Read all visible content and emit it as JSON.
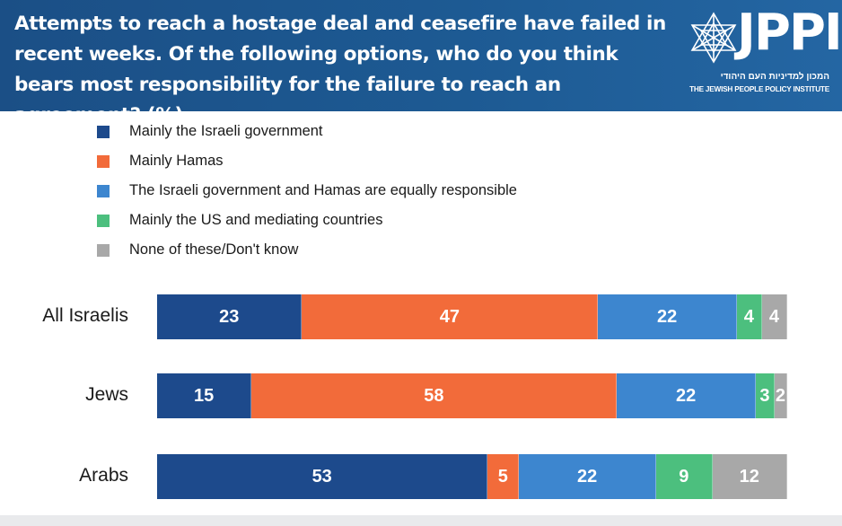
{
  "header": {
    "title": "Attempts to reach a hostage deal and ceasefire have failed in recent weeks. Of the following options, who do you think bears most responsibility for the failure to reach an agreement? (%)",
    "logo_text": "JPPI",
    "logo_hebrew": "המכון למדיניות העם היהודי",
    "logo_english": "THE JEWISH PEOPLE POLICY INSTITUTE"
  },
  "colors": {
    "header_bg": "#1d5a93",
    "israeli_government": "#1d4a8c",
    "hamas": "#f26b3a",
    "equal": "#3d86cf",
    "us_mediators": "#4cbf7e",
    "none": "#a8a8a8"
  },
  "chart_data": {
    "type": "bar",
    "orientation": "horizontal",
    "stacked": true,
    "title": "Attempts to reach a hostage deal and ceasefire have failed in recent weeks. Of the following options, who do you think bears most responsibility for the failure to reach an agreement? (%)",
    "categories": [
      "All Israelis",
      "Jews",
      "Arabs"
    ],
    "series": [
      {
        "name": "Mainly the Israeli government",
        "color": "#1d4a8c",
        "values": [
          23,
          15,
          53
        ]
      },
      {
        "name": "Mainly Hamas",
        "color": "#f26b3a",
        "values": [
          47,
          58,
          5
        ]
      },
      {
        "name": "The Israeli government and Hamas are equally responsible",
        "color": "#3d86cf",
        "values": [
          22,
          22,
          22
        ]
      },
      {
        "name": "Mainly the US and mediating countries",
        "color": "#4cbf7e",
        "values": [
          4,
          3,
          9
        ]
      },
      {
        "name": "None of these/Don't know",
        "color": "#a8a8a8",
        "values": [
          4,
          2,
          12
        ]
      }
    ],
    "xlim": [
      0,
      100
    ],
    "legend_position": "top",
    "grid": false,
    "data_labels": true
  }
}
